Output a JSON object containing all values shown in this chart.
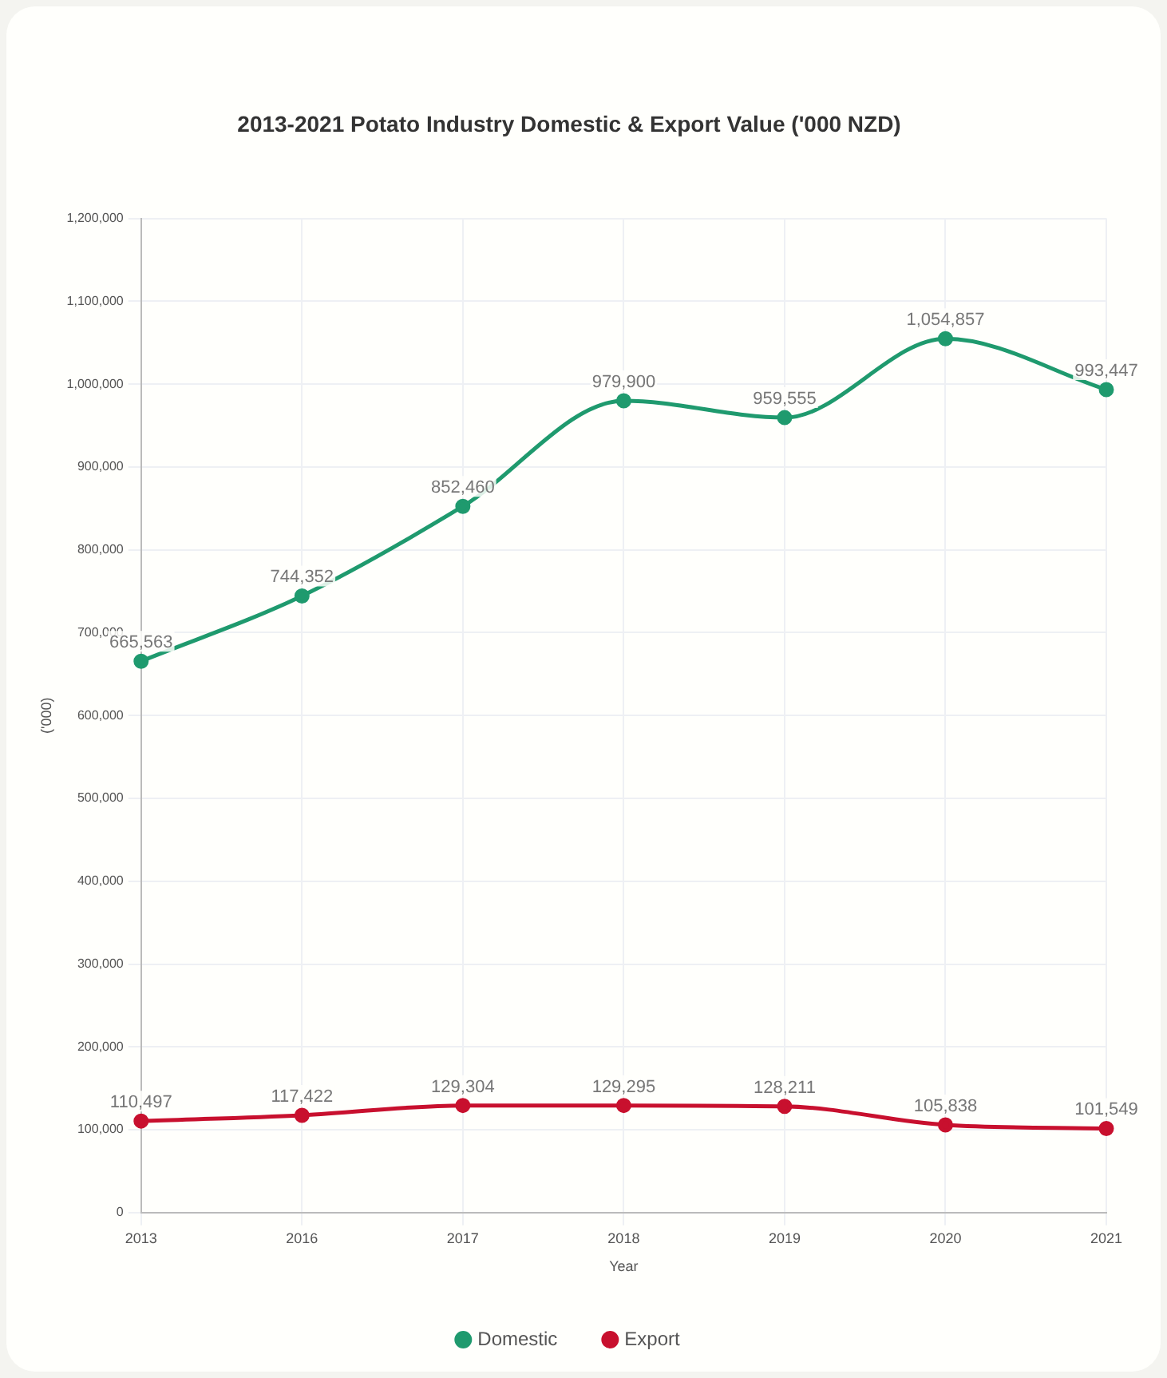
{
  "chart_data": {
    "type": "line",
    "title": "2013-2021 Potato Industry Domestic & Export Value ('000 NZD)",
    "xlabel": "Year",
    "ylabel": "('000)",
    "categories": [
      "2013",
      "2016",
      "2017",
      "2018",
      "2019",
      "2020",
      "2021"
    ],
    "series": [
      {
        "name": "Domestic",
        "color": "#1f9a6e",
        "values": [
          665563,
          744352,
          852460,
          979900,
          959555,
          1054857,
          993447
        ],
        "value_labels": [
          "665,563",
          "744,352",
          "852,460",
          "979,900",
          "959,555",
          "1,054,857",
          "993,447"
        ]
      },
      {
        "name": "Export",
        "color": "#c8102e",
        "values": [
          110497,
          117422,
          129304,
          129295,
          128211,
          105838,
          101549
        ],
        "value_labels": [
          "110,497",
          "117,422",
          "129,304",
          "129,295",
          "128,211",
          "105,838",
          "101,549"
        ]
      }
    ],
    "ylim": [
      0,
      1200000
    ],
    "yticks": [
      0,
      {
        "value": 100000,
        "label": "100,000"
      },
      {
        "value": 200000,
        "label": "200,000"
      },
      {
        "value": 300000,
        "label": "300,000"
      },
      {
        "value": 400000,
        "label": "400,000"
      },
      {
        "value": 500000,
        "label": "500,000"
      },
      {
        "value": 600000,
        "label": "600,000"
      },
      {
        "value": 700000,
        "label": "700,000"
      },
      {
        "value": 800000,
        "label": "800,000"
      },
      {
        "value": 900000,
        "label": "900,000"
      },
      {
        "value": 1000000,
        "label": "1,000,000"
      },
      {
        "value": 1100000,
        "label": "1,100,000"
      },
      {
        "value": 1200000,
        "label": "1,200,000"
      }
    ],
    "grid": true,
    "legend": "bottom",
    "marker": "circle",
    "line_style": "solid"
  }
}
